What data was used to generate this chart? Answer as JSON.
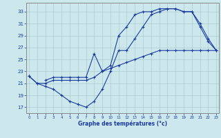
{
  "xlabel": "Graphe des températures (°c)",
  "bg_color": "#cce8ec",
  "line_color": "#1a3a9e",
  "grid_color": "#aacccc",
  "x_ticks": [
    0,
    1,
    2,
    3,
    4,
    5,
    6,
    7,
    8,
    9,
    10,
    11,
    12,
    13,
    14,
    15,
    16,
    17,
    18,
    19,
    20,
    21,
    22,
    23
  ],
  "y_ticks": [
    17,
    19,
    21,
    23,
    25,
    27,
    29,
    31,
    33
  ],
  "ylim": [
    16.0,
    34.5
  ],
  "xlim": [
    -0.3,
    23.3
  ],
  "line1_x": [
    0,
    1,
    2,
    3,
    4,
    5,
    6,
    7,
    8,
    9,
    10,
    11,
    12,
    13,
    14,
    15,
    16,
    17,
    18,
    19,
    20,
    21,
    22,
    23
  ],
  "line1_y": [
    22.2,
    21.0,
    21.0,
    21.5,
    21.5,
    21.5,
    21.5,
    21.5,
    22.0,
    23.0,
    23.5,
    24.0,
    24.5,
    25.0,
    25.5,
    26.0,
    26.5,
    26.5,
    26.5,
    26.5,
    26.5,
    26.5,
    26.5,
    26.5
  ],
  "line2_x": [
    0,
    1,
    2,
    3,
    4,
    5,
    6,
    7,
    8,
    9,
    10,
    11,
    12,
    13,
    14,
    15,
    16,
    17,
    18,
    19,
    20,
    21,
    22,
    23
  ],
  "line2_y": [
    22.2,
    21.0,
    20.5,
    20.0,
    19.0,
    18.0,
    17.5,
    17.0,
    18.0,
    20.0,
    23.0,
    26.5,
    26.5,
    28.5,
    30.5,
    32.5,
    33.0,
    33.5,
    33.5,
    33.0,
    33.0,
    31.0,
    28.5,
    26.5
  ],
  "line3_x": [
    2,
    3,
    4,
    5,
    6,
    7,
    8,
    9,
    10,
    11,
    12,
    13,
    14,
    15,
    16,
    17,
    18,
    19,
    20,
    21,
    22,
    23
  ],
  "line3_y": [
    21.5,
    22.0,
    22.0,
    22.0,
    22.0,
    22.0,
    26.0,
    23.0,
    24.0,
    29.0,
    30.5,
    32.5,
    33.0,
    33.0,
    33.5,
    33.5,
    33.5,
    33.0,
    33.0,
    30.5,
    28.0,
    26.5
  ]
}
